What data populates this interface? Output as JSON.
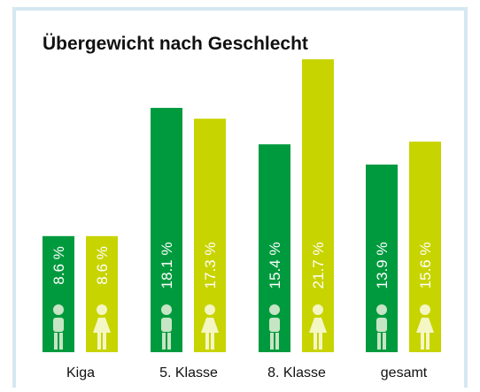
{
  "chart_data": {
    "type": "bar",
    "title": "Übergewicht nach Geschlecht",
    "categories": [
      "Kiga",
      "5. Klasse",
      "8. Klasse",
      "gesamt"
    ],
    "series": [
      {
        "color": "#009a3e",
        "values": [
          8.6,
          18.1,
          15.4,
          13.9
        ],
        "value_labels": [
          "8.6 %",
          "18.1 %",
          "15.4 %",
          "13.9 %"
        ]
      },
      {
        "color": "#c8d400",
        "values": [
          8.6,
          17.3,
          21.7,
          15.6
        ],
        "value_labels": [
          "8.6 %",
          "17.3 %",
          "21.7 %",
          "15.6 %"
        ]
      }
    ]
  }
}
